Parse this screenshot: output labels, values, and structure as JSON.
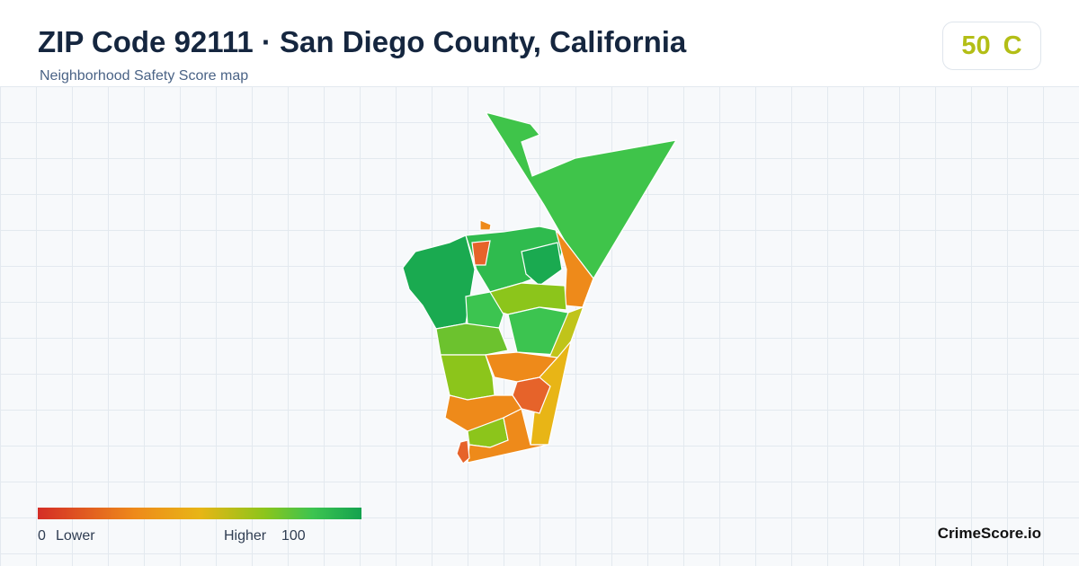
{
  "header": {
    "title": "ZIP Code 92111 · San Diego County, California",
    "subtitle": "Neighborhood Safety Score map"
  },
  "score": {
    "value": "50",
    "grade": "C"
  },
  "legend": {
    "min": "0",
    "min_label": "Lower",
    "max_label": "Higher",
    "max": "100"
  },
  "brand": "CrimeScore.io"
}
